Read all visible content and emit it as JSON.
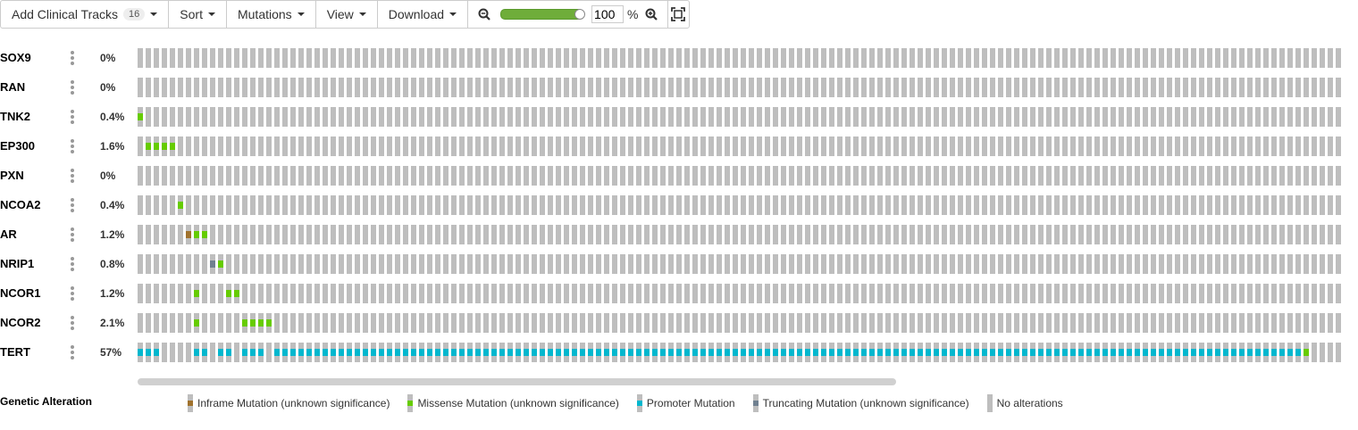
{
  "toolbar": {
    "add_tracks_label": "Add Clinical Tracks",
    "add_tracks_count": "16",
    "sort_label": "Sort",
    "mutations_label": "Mutations",
    "view_label": "View",
    "download_label": "Download",
    "zoom_value": "100",
    "zoom_unit": "%",
    "zoom_level": 1.0
  },
  "colors": {
    "no_alteration": "#bebebe",
    "missense": "#66cc00",
    "inframe": "#a0722d",
    "promoter": "#00b7ce",
    "truncating": "#708090"
  },
  "tracks": [
    {
      "gene": "SOX9",
      "pct": "0%",
      "alterations": []
    },
    {
      "gene": "RAN",
      "pct": "0%",
      "alterations": []
    },
    {
      "gene": "TNK2",
      "pct": "0.4%",
      "alterations": [
        [
          0,
          "missense"
        ]
      ]
    },
    {
      "gene": "EP300",
      "pct": "1.6%",
      "alterations": [
        [
          1,
          "missense"
        ],
        [
          2,
          "missense"
        ],
        [
          3,
          "missense"
        ],
        [
          4,
          "missense"
        ]
      ]
    },
    {
      "gene": "PXN",
      "pct": "0%",
      "alterations": []
    },
    {
      "gene": "NCOA2",
      "pct": "0.4%",
      "alterations": [
        [
          5,
          "missense"
        ]
      ]
    },
    {
      "gene": "AR",
      "pct": "1.2%",
      "alterations": [
        [
          6,
          "inframe"
        ],
        [
          7,
          "missense"
        ],
        [
          8,
          "missense"
        ]
      ]
    },
    {
      "gene": "NRIP1",
      "pct": "0.8%",
      "alterations": [
        [
          9,
          "truncating"
        ],
        [
          10,
          "missense"
        ]
      ]
    },
    {
      "gene": "NCOR1",
      "pct": "1.2%",
      "alterations": [
        [
          7,
          "missense"
        ],
        [
          11,
          "missense"
        ],
        [
          12,
          "missense"
        ]
      ]
    },
    {
      "gene": "NCOR2",
      "pct": "2.1%",
      "alterations": [
        [
          7,
          "missense"
        ],
        [
          13,
          "missense"
        ],
        [
          14,
          "missense"
        ],
        [
          15,
          "missense"
        ],
        [
          16,
          "missense"
        ]
      ]
    },
    {
      "gene": "TERT",
      "pct": "57%",
      "alterations": "TERT"
    }
  ],
  "sample_count": 150,
  "legend": {
    "title": "Genetic Alteration",
    "items": [
      {
        "label": "Inframe Mutation (unknown significance)",
        "type": "inframe"
      },
      {
        "label": "Missense Mutation (unknown significance)",
        "type": "missense"
      },
      {
        "label": "Promoter Mutation",
        "type": "promoter"
      },
      {
        "label": "Truncating Mutation (unknown significance)",
        "type": "truncating"
      },
      {
        "label": "No alterations",
        "type": "none"
      }
    ]
  }
}
